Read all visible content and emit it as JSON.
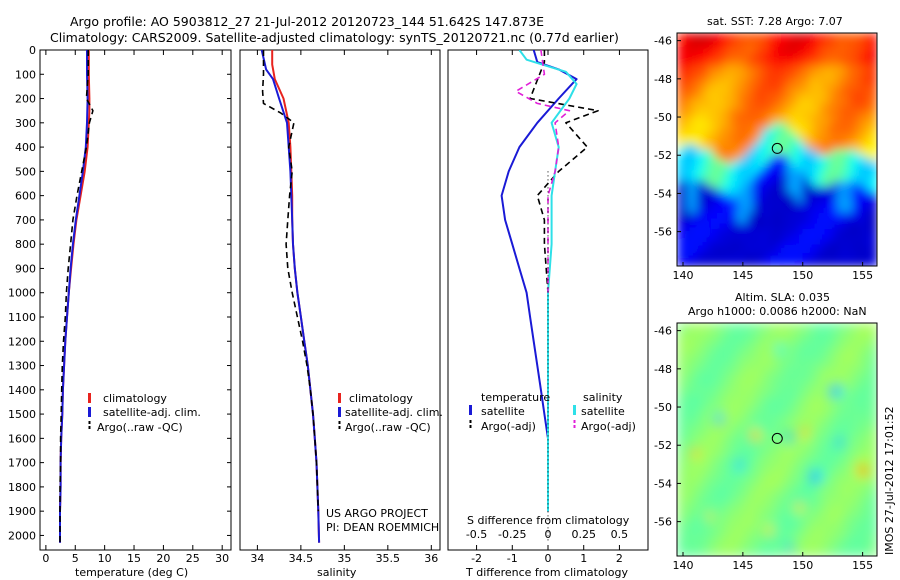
{
  "header": {
    "title_line1": "Argo profile: AO 5903812_27 21-Jul-2012 20120723_144 51.642S 147.873E",
    "title_line2": "Climatology: CARS2009. Satellite-adjusted climatology: synTS_20120721.nc (0.77d earlier)"
  },
  "credits": {
    "project": "US ARGO PROJECT",
    "pi": "PI: DEAN ROEMMICH",
    "stamp": "IMOS 27-Jul-2012 17:01:52"
  },
  "colors": {
    "climatology": "#e8231e",
    "satellite": "#1a1ad6",
    "argo": "#000000",
    "sal_satellite": "#2ee0e8",
    "sal_argo": "#e020d8"
  },
  "chart_data": [
    {
      "type": "line",
      "name": "temperature-profile",
      "xlabel": "temperature (deg C)",
      "ylabel": "",
      "xlim": [
        -1,
        31.5
      ],
      "ylim": [
        2060,
        0
      ],
      "xticks": [
        0,
        5,
        10,
        15,
        20,
        25,
        30
      ],
      "yticks": [
        0,
        100,
        200,
        300,
        400,
        500,
        600,
        700,
        800,
        900,
        1000,
        1100,
        1200,
        1300,
        1400,
        1500,
        1600,
        1700,
        1800,
        1900,
        2000
      ],
      "legend": [
        "climatology",
        "satellite-adj. clim.",
        "Argo(..raw -QC)"
      ],
      "legend_position": "lower-right",
      "series": [
        {
          "name": "climatology",
          "style": "solid",
          "color": "#e8231e",
          "x": [
            7.3,
            7.3,
            7.4,
            7.4,
            7.3,
            7.1,
            6.6,
            5.9,
            5.2,
            4.7,
            4.3,
            3.9,
            3.6,
            3.3,
            3.1,
            2.9,
            2.8,
            2.6,
            2.5,
            2.5,
            2.4,
            2.4
          ],
          "y": [
            0,
            100,
            200,
            250,
            300,
            400,
            500,
            600,
            700,
            800,
            900,
            1000,
            1100,
            1200,
            1300,
            1400,
            1500,
            1600,
            1700,
            1800,
            1900,
            2030
          ]
        },
        {
          "name": "satellite-adj. clim.",
          "style": "solid",
          "color": "#1a1ad6",
          "x": [
            7.0,
            7.0,
            7.1,
            7.0,
            6.8,
            6.3,
            5.7,
            5.1,
            4.6,
            4.2,
            3.9,
            3.6,
            3.3,
            3.1,
            2.9,
            2.8,
            2.6,
            2.5,
            2.5,
            2.4,
            2.4
          ],
          "y": [
            0,
            100,
            200,
            300,
            400,
            500,
            600,
            700,
            800,
            900,
            1000,
            1100,
            1200,
            1300,
            1400,
            1500,
            1600,
            1700,
            1800,
            1900,
            2030
          ]
        },
        {
          "name": "Argo(..raw -QC)",
          "style": "dashed",
          "color": "#000000",
          "x": [
            7.2,
            7.2,
            6.9,
            8.0,
            7.4,
            6.9,
            6.1,
            5.3,
            4.6,
            4.2,
            3.8,
            3.5,
            3.3,
            3.0,
            2.8,
            2.7,
            2.6,
            2.5,
            2.5,
            2.4,
            2.4
          ],
          "y": [
            0,
            100,
            200,
            250,
            300,
            400,
            500,
            600,
            700,
            800,
            900,
            1000,
            1100,
            1200,
            1300,
            1400,
            1500,
            1600,
            1700,
            1800,
            2030
          ]
        }
      ]
    },
    {
      "type": "line",
      "name": "salinity-profile",
      "xlabel": "salinity",
      "ylabel": "",
      "xlim": [
        33.8,
        36.1
      ],
      "ylim": [
        2060,
        0
      ],
      "xticks": [
        34,
        34.5,
        35,
        35.5,
        36
      ],
      "legend": [
        "climatology",
        "satellite-adj. clim.",
        "Argo(..raw -QC)"
      ],
      "legend_position": "lower-right",
      "series": [
        {
          "name": "climatology",
          "style": "solid",
          "color": "#e8231e",
          "x": [
            34.17,
            34.17,
            34.2,
            34.3,
            34.36,
            34.38,
            34.39,
            34.4,
            34.4,
            34.41,
            34.43,
            34.46,
            34.5,
            34.54,
            34.58,
            34.61,
            34.64,
            34.66,
            34.68,
            34.69,
            34.7,
            34.71
          ],
          "y": [
            0,
            60,
            120,
            200,
            300,
            400,
            500,
            600,
            700,
            800,
            900,
            1000,
            1100,
            1200,
            1300,
            1400,
            1500,
            1600,
            1700,
            1800,
            1900,
            2030
          ]
        },
        {
          "name": "satellite-adj. clim.",
          "style": "solid",
          "color": "#1a1ad6",
          "x": [
            34.05,
            34.1,
            34.18,
            34.25,
            34.34,
            34.36,
            34.38,
            34.39,
            34.4,
            34.41,
            34.43,
            34.46,
            34.5,
            34.54,
            34.58,
            34.61,
            34.64,
            34.66,
            34.68,
            34.69,
            34.7,
            34.71
          ],
          "y": [
            0,
            80,
            120,
            200,
            300,
            400,
            500,
            600,
            700,
            800,
            900,
            1000,
            1100,
            1200,
            1300,
            1400,
            1500,
            1600,
            1700,
            1800,
            1900,
            2030
          ]
        },
        {
          "name": "Argo(..raw -QC)",
          "style": "dashed",
          "color": "#000000",
          "x": [
            34.07,
            34.07,
            34.06,
            34.07,
            34.27,
            34.42,
            34.36,
            34.4,
            34.37,
            34.35,
            34.33,
            34.35,
            34.4,
            34.46,
            34.52,
            34.57,
            34.61,
            34.64,
            34.66,
            34.68,
            34.7
          ],
          "y": [
            0,
            100,
            170,
            220,
            260,
            300,
            400,
            500,
            600,
            700,
            800,
            900,
            1000,
            1100,
            1200,
            1300,
            1400,
            1500,
            1600,
            1700,
            1900
          ]
        }
      ]
    },
    {
      "type": "line",
      "name": "difference-profile",
      "xlabel": "T difference from climatology",
      "xlabel_top": "S difference from climatology",
      "xlim": [
        -2.8,
        2.8
      ],
      "ylim": [
        2060,
        0
      ],
      "xticks": [
        -2,
        -1,
        0,
        1,
        2
      ],
      "xticks_s": [
        -0.5,
        -0.25,
        0,
        0.25,
        0.5
      ],
      "legend_groups": [
        {
          "heading": "temperature",
          "entries": [
            "satellite",
            "Argo(-adj)"
          ]
        },
        {
          "heading": "salinity",
          "entries": [
            "satellite",
            "Argo(-adj)"
          ]
        }
      ],
      "legend_position": "lower-right",
      "series": [
        {
          "name": "temperature satellite",
          "style": "solid",
          "color": "#1a1ad6",
          "x": [
            -0.4,
            -0.3,
            0.3,
            0.8,
            0.3,
            -0.3,
            -0.8,
            -1.1,
            -1.3,
            -1.2,
            -1.0,
            -0.8,
            -0.6,
            -0.5,
            -0.4,
            -0.3,
            -0.2,
            -0.1,
            0.0,
            0.0,
            0.0
          ],
          "y": [
            0,
            50,
            80,
            120,
            200,
            300,
            400,
            500,
            600,
            700,
            800,
            900,
            1000,
            1100,
            1200,
            1300,
            1400,
            1500,
            1600,
            1800,
            1900
          ]
        },
        {
          "name": "temperature Argo(-adj)",
          "style": "dashed",
          "color": "#000000",
          "x": [
            -0.1,
            -0.1,
            -0.5,
            1.4,
            0.5,
            1.1,
            0.3,
            -0.3,
            -0.1,
            -0.1,
            0.0,
            0.0,
            0.0
          ],
          "y": [
            0,
            50,
            200,
            250,
            300,
            400,
            500,
            600,
            700,
            800,
            1000,
            1500,
            1900
          ]
        },
        {
          "name": "salinity satellite",
          "style": "solid",
          "color": "#2ee0e8",
          "x": [
            -0.8,
            -0.6,
            0.5,
            0.8,
            0.6,
            0.1,
            0.3,
            0.2,
            0.1,
            0.1,
            0.0,
            0.0,
            0.0,
            0.0
          ],
          "y": [
            0,
            40,
            90,
            140,
            200,
            300,
            400,
            500,
            600,
            800,
            1000,
            1300,
            1600,
            1900
          ]
        },
        {
          "name": "salinity Argo(-adj)",
          "style": "dashed",
          "color": "#e020d8",
          "x": [
            -0.2,
            -0.1,
            -0.9,
            -0.3,
            0.6,
            0.2,
            0.3,
            0.2,
            0.0,
            0.0,
            0.0
          ],
          "y": [
            0,
            100,
            170,
            220,
            250,
            300,
            400,
            500,
            600,
            800,
            1000
          ]
        },
        {
          "name": "zero reference",
          "style": "dotted",
          "color": "#000000",
          "x": [
            0,
            0
          ],
          "y": [
            500,
            2030
          ]
        }
      ]
    },
    {
      "type": "heatmap",
      "name": "sst-map",
      "title": "sat. SST: 7.28 Argo: 7.07",
      "xlim": [
        139.5,
        156.2
      ],
      "ylim": [
        -57.8,
        -45.6
      ],
      "xticks": [
        140,
        145,
        150,
        155
      ],
      "yticks": [
        -46,
        -48,
        -50,
        -52,
        -54,
        -56
      ],
      "marker": {
        "lon": 147.873,
        "lat": -51.642
      }
    },
    {
      "type": "heatmap",
      "name": "sla-map",
      "title_line1": "Altim. SLA: 0.035",
      "title_line2": "Argo h1000: 0.0086 h2000: NaN",
      "xlim": [
        139.5,
        156.2
      ],
      "ylim": [
        -57.8,
        -45.6
      ],
      "xticks": [
        140,
        145,
        150,
        155
      ],
      "yticks": [
        -46,
        -48,
        -50,
        -52,
        -54,
        -56
      ],
      "marker": {
        "lon": 147.873,
        "lat": -51.642
      }
    }
  ]
}
